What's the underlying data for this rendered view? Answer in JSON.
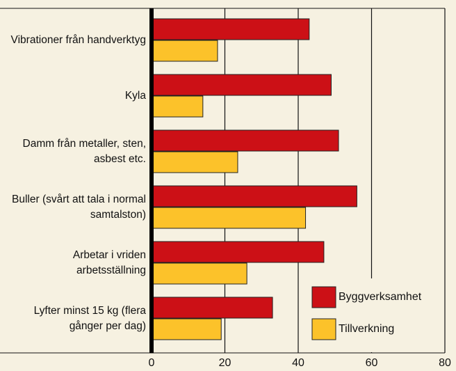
{
  "chart_data": {
    "type": "bar",
    "orientation": "horizontal",
    "categories": [
      "Vibrationer från handverktyg",
      "Kyla",
      "Damm från metaller, sten, asbest etc.",
      "Buller (svårt att tala i normal samtalston)",
      "Arbetar i vriden arbetsställning",
      "Lyfter minst 15 kg (flera gånger per dag)"
    ],
    "series": [
      {
        "name": "Byggverksamhet",
        "color": "#cc1016",
        "values": [
          43,
          49,
          51,
          56,
          47,
          33
        ]
      },
      {
        "name": "Tillverkning",
        "color": "#fcc22a",
        "values": [
          18,
          14,
          23.5,
          42,
          26,
          19
        ]
      }
    ],
    "xlim": [
      0,
      80
    ],
    "xticks": [
      0,
      20,
      40,
      60,
      80
    ],
    "grid": true,
    "legend": "lower right"
  }
}
